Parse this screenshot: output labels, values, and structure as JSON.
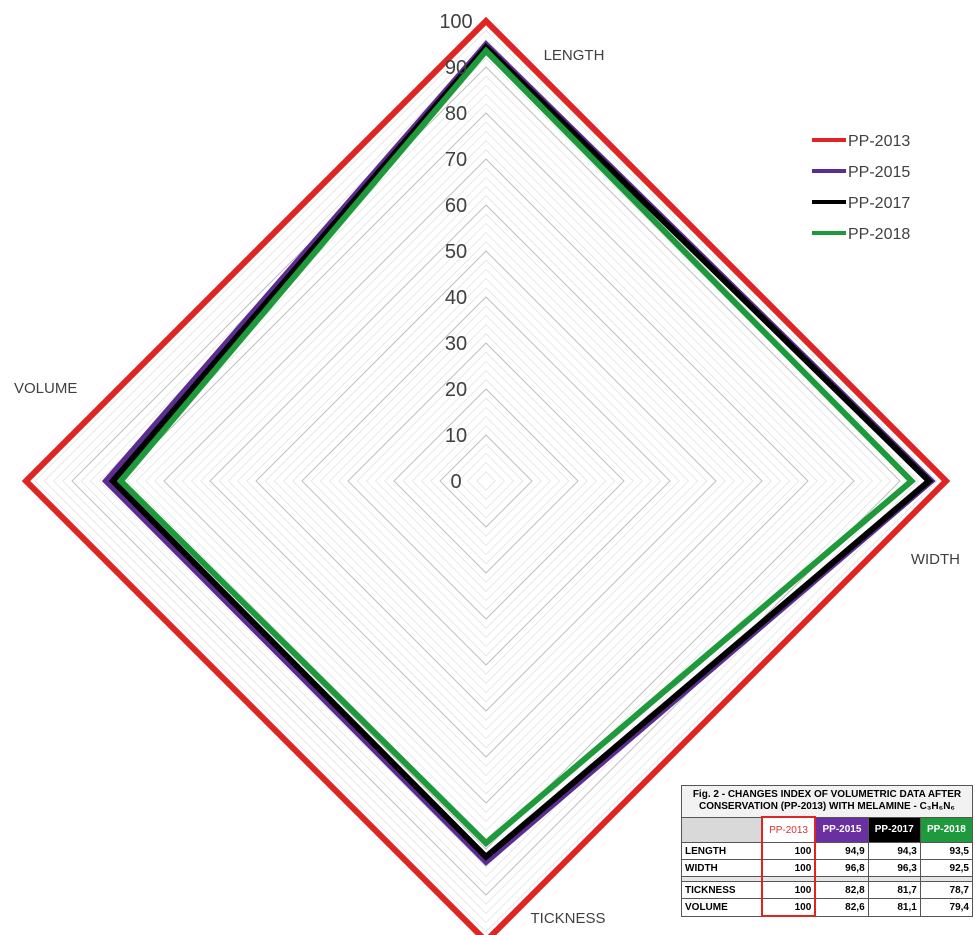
{
  "chart_data": {
    "type": "radar",
    "axes": [
      "LENGTH",
      "WIDTH",
      "TICKNESS",
      "VOLUME"
    ],
    "range": [
      0,
      100
    ],
    "ticks": [
      0,
      10,
      20,
      30,
      40,
      50,
      60,
      70,
      80,
      90,
      100
    ],
    "grid": true,
    "legend_position": "top-right",
    "series": [
      {
        "name": "PP-2013",
        "color": "#e02424",
        "values": [
          100,
          100,
          100,
          100
        ]
      },
      {
        "name": "PP-2015",
        "color": "#5b2d91",
        "values": [
          94.9,
          96.8,
          82.8,
          82.6
        ]
      },
      {
        "name": "PP-2017",
        "color": "#000000",
        "values": [
          94.3,
          96.3,
          81.7,
          81.1
        ]
      },
      {
        "name": "PP-2018",
        "color": "#1e9a3c",
        "values": [
          93.5,
          92.5,
          78.7,
          79.4
        ]
      }
    ]
  },
  "table": {
    "caption": "Fig. 2 - CHANGES INDEX OF VOLUMETRIC DATA AFTER CONSERVATION (PP-2013) WITH MELAMINE - C₃H₆N₆",
    "headers": [
      "PP-2013",
      "PP-2015",
      "PP-2017",
      "PP-2018"
    ],
    "header_colors": [
      "#ffffff",
      "#6a2fa0",
      "#000000",
      "#1e9a3c"
    ],
    "rows": [
      {
        "label": "LENGTH",
        "values": [
          "100",
          "94,9",
          "94,3",
          "93,5"
        ]
      },
      {
        "label": "WIDTH",
        "values": [
          "100",
          "96,8",
          "96,3",
          "92,5"
        ]
      },
      {
        "label": "TICKNESS",
        "values": [
          "100",
          "82,8",
          "81,7",
          "78,7"
        ]
      },
      {
        "label": "VOLUME",
        "values": [
          "100",
          "82,6",
          "81,1",
          "79,4"
        ]
      }
    ]
  }
}
